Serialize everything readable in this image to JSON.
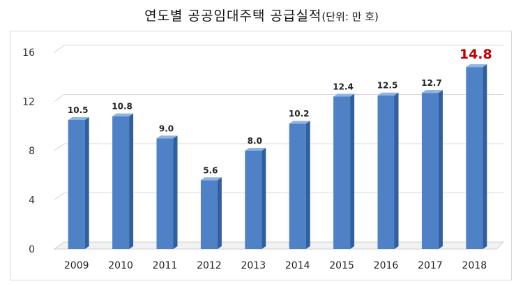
{
  "title": {
    "main": "연도별 공공임대주택 공급실적",
    "unit": "(단위: 만 호)"
  },
  "chart_data": {
    "type": "bar",
    "title": "연도별 공공임대주택 공급실적(단위: 만 호)",
    "categories": [
      "2009",
      "2010",
      "2011",
      "2012",
      "2013",
      "2014",
      "2015",
      "2016",
      "2017",
      "2018"
    ],
    "values": [
      10.5,
      10.8,
      9.0,
      5.6,
      8.0,
      10.2,
      12.4,
      12.5,
      12.7,
      14.8
    ],
    "value_labels": [
      "10.5",
      "10.8",
      "9.0",
      "5.6",
      "8.0",
      "10.2",
      "12.4",
      "12.5",
      "12.7",
      "14.8"
    ],
    "ylim": [
      0,
      16
    ],
    "yticks": [
      "0",
      "4",
      "8",
      "12",
      "16"
    ],
    "grid": true,
    "bar_color": "#4f81c7",
    "highlight_index": 9,
    "highlight_color": "#c00000"
  }
}
